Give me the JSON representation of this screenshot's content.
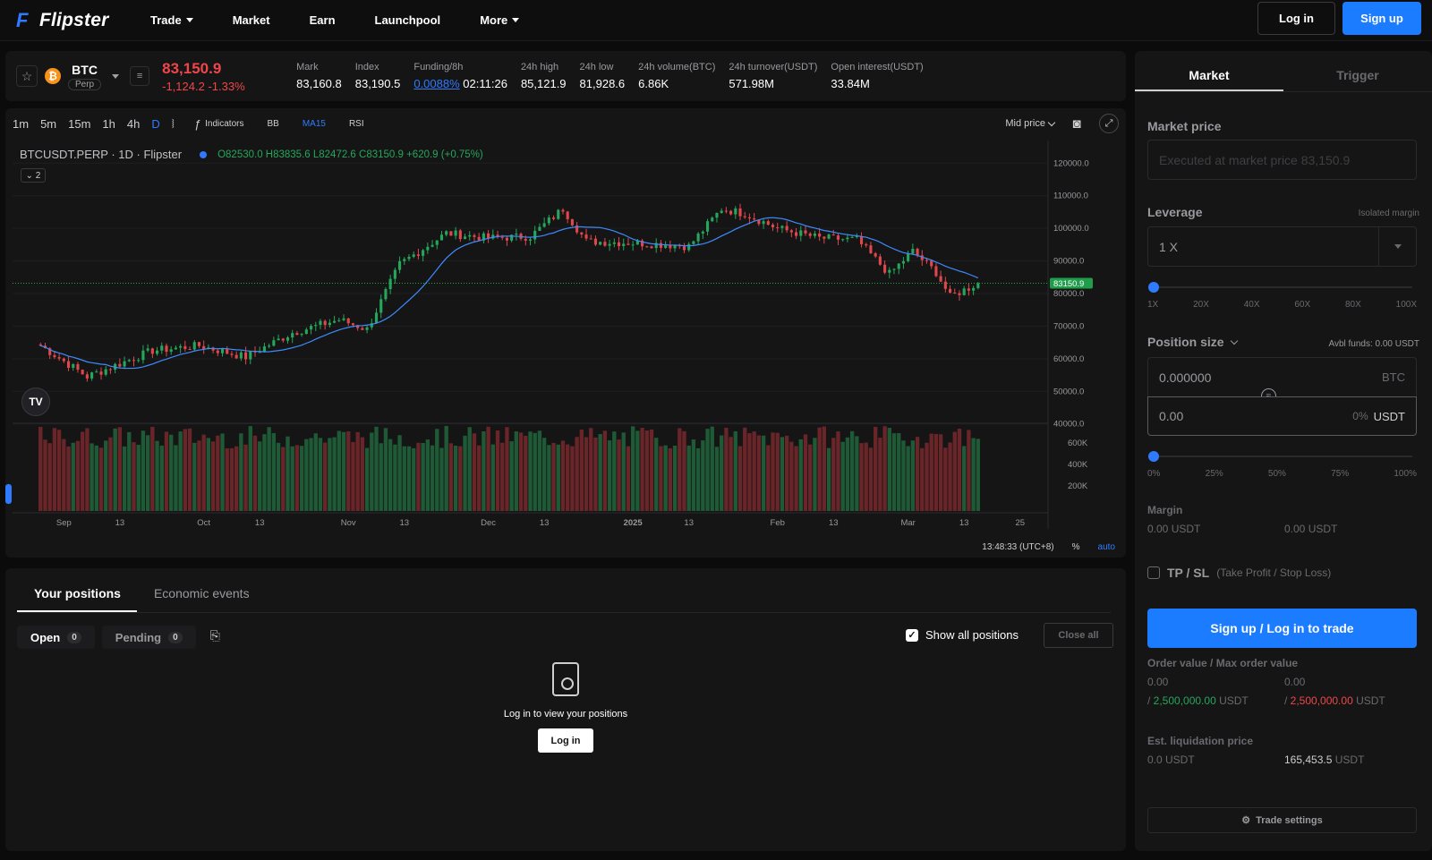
{
  "nav": {
    "brand": "Flipster",
    "items": [
      {
        "label": "Trade",
        "dropdown": true
      },
      {
        "label": "Market",
        "dropdown": false
      },
      {
        "label": "Earn",
        "dropdown": false
      },
      {
        "label": "Launchpool",
        "dropdown": false
      },
      {
        "label": "More",
        "dropdown": true
      }
    ],
    "login": "Log in",
    "signup": "Sign up"
  },
  "ticker": {
    "symbol": "BTC",
    "type": "Perp",
    "last_price": "83,150.9",
    "change": "-1,124.2 -1.33%",
    "stats": [
      {
        "label": "Mark",
        "value": "83,160.8"
      },
      {
        "label": "Index",
        "value": "83,190.5"
      },
      {
        "label": "Funding/8h",
        "value": "0.0088%",
        "extra": "02:11:26"
      },
      {
        "label": "24h high",
        "value": "85,121.9"
      },
      {
        "label": "24h low",
        "value": "81,928.6"
      },
      {
        "label": "24h volume(BTC)",
        "value": "6.86K"
      },
      {
        "label": "24h turnover(USDT)",
        "value": "571.98M"
      },
      {
        "label": "Open interest(USDT)",
        "value": "33.84M"
      }
    ]
  },
  "toolbar": {
    "timeframes": [
      "1m",
      "5m",
      "15m",
      "1h",
      "4h",
      "D"
    ],
    "active_timeframe": "D",
    "indicators": "Indicators",
    "studies": [
      "BB",
      "MA15",
      "RSI"
    ],
    "price_mode": "Mid price"
  },
  "chart_header": {
    "title": "BTCUSDT.PERP · 1D · Flipster",
    "ohlc": "O82530.0  H83835.6  L82472.6  C83150.9  +620.9 (+0.75%)",
    "collapsed_count": "2"
  },
  "chart_data": {
    "type": "candlestick",
    "title": "BTCUSDT.PERP · 1D · Flipster",
    "y_ticks": [
      "120000.0",
      "110000.0",
      "100000.0",
      "90000.0",
      "80000.0",
      "70000.0",
      "60000.0",
      "50000.0",
      "40000.0"
    ],
    "ylim": [
      38000,
      122000
    ],
    "current_price_label": "83150.9",
    "current_price": 83150.9,
    "volume_ticks": [
      "600K",
      "400K",
      "200K"
    ],
    "x_ticks": [
      "Sep",
      "13",
      "Oct",
      "13",
      "Nov",
      "13",
      "Dec",
      "13",
      "2025",
      "13",
      "Feb",
      "13",
      "Mar",
      "13",
      "25"
    ],
    "close_anchors": [
      {
        "date": "2024-08-27",
        "close": 64000
      },
      {
        "date": "2024-09-06",
        "close": 54500
      },
      {
        "date": "2024-09-20",
        "close": 62500
      },
      {
        "date": "2024-09-30",
        "close": 64000
      },
      {
        "date": "2024-10-10",
        "close": 60500
      },
      {
        "date": "2024-10-20",
        "close": 68000
      },
      {
        "date": "2024-10-30",
        "close": 72000
      },
      {
        "date": "2024-11-05",
        "close": 69000
      },
      {
        "date": "2024-11-12",
        "close": 89000
      },
      {
        "date": "2024-11-22",
        "close": 98500
      },
      {
        "date": "2024-12-01",
        "close": 97000
      },
      {
        "date": "2024-12-10",
        "close": 97500
      },
      {
        "date": "2024-12-17",
        "close": 106000
      },
      {
        "date": "2024-12-22",
        "close": 96000
      },
      {
        "date": "2025-01-02",
        "close": 95500
      },
      {
        "date": "2025-01-08",
        "close": 95000
      },
      {
        "date": "2025-01-13",
        "close": 94500
      },
      {
        "date": "2025-01-20",
        "close": 106000
      },
      {
        "date": "2025-01-25",
        "close": 104500
      },
      {
        "date": "2025-02-01",
        "close": 100000
      },
      {
        "date": "2025-02-10",
        "close": 97000
      },
      {
        "date": "2025-02-18",
        "close": 96500
      },
      {
        "date": "2025-02-25",
        "close": 86000
      },
      {
        "date": "2025-03-02",
        "close": 93000
      },
      {
        "date": "2025-03-07",
        "close": 86500
      },
      {
        "date": "2025-03-10",
        "close": 79000
      },
      {
        "date": "2025-03-16",
        "close": 83150
      }
    ],
    "ma15": true,
    "grid": true,
    "timestamp": "13:48:33 (UTC+8)",
    "percent": "%",
    "auto": "auto",
    "colors": {
      "up": "#26a65b",
      "down": "#e0464a",
      "ma": "#3d8bfd",
      "price_line": "#2aa84a"
    }
  },
  "positions": {
    "tabs": [
      "Your positions",
      "Economic events"
    ],
    "open_label": "Open",
    "open_count": "0",
    "pending_label": "Pending",
    "pending_count": "0",
    "show_all": "Show all positions",
    "close_all": "Close all",
    "empty_msg": "Log in to view your positions",
    "login": "Log in"
  },
  "order": {
    "tabs": [
      "Market",
      "Trigger"
    ],
    "market_price_label": "Market price",
    "market_price_placeholder": "Executed at market price 83,150.9",
    "leverage_label": "Leverage",
    "isolated": "Isolated margin",
    "leverage_value": "1 X",
    "leverage_ticks": [
      "1X",
      "20X",
      "40X",
      "60X",
      "80X",
      "100X"
    ],
    "leverage_fraction": 0,
    "position_size_label": "Position size",
    "avbl_funds": "Avbl funds: 0.00 USDT",
    "btc_value": "0.000000",
    "btc_unit": "BTC",
    "usdt_value": "0.00",
    "usdt_pct": "0%",
    "usdt_unit": "USDT",
    "size_ticks": [
      "0%",
      "25%",
      "50%",
      "75%",
      "100%"
    ],
    "size_fraction": 0,
    "margin_label": "Margin",
    "margin_1": "0.00 USDT",
    "margin_2": "0.00 USDT",
    "tpsl_label": "TP / SL",
    "tpsl_sub": "(Take Profit / Stop Loss)",
    "signup_login": "Sign up / Log in to trade",
    "order_value_label": "Order value / Max order value",
    "ov_1": "0.00",
    "ov_2": "0.00",
    "max_1": "2,500,000.00",
    "max_2": "2,500,000.00",
    "usdt": "USDT",
    "liq_label": "Est. liquidation price",
    "liq_1": "0.0 USDT",
    "liq_2": "165,453.5",
    "trade_settings": "Trade settings"
  }
}
